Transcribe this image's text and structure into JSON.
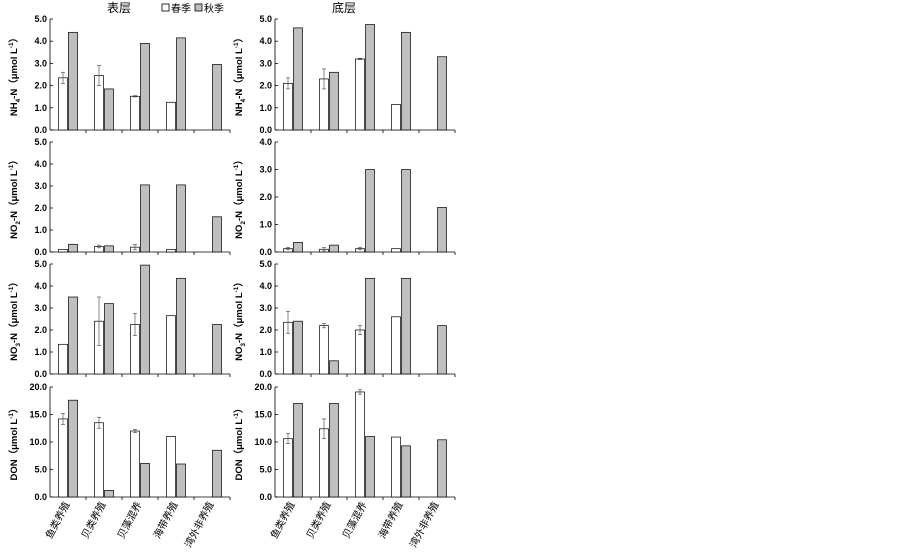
{
  "legend": {
    "spring_label": "春季",
    "autumn_label": "秋季",
    "spring_color": "#ffffff",
    "autumn_color": "#bfbfbf"
  },
  "columns": [
    {
      "title": "表层"
    },
    {
      "title": "底层"
    }
  ],
  "chart_data": [
    {
      "type": "bar",
      "layer": "表层",
      "ylabel": "NH4-N（μmol L-1）",
      "categories": [
        "鱼类养殖",
        "贝类养殖",
        "贝藻混养",
        "海带养殖",
        "湾外非养殖"
      ],
      "ylim": [
        0,
        5
      ],
      "yticks": [
        "0.0",
        "1.0",
        "2.0",
        "3.0",
        "4.0",
        "5.0"
      ],
      "series": [
        {
          "name": "春季",
          "values": [
            2.35,
            2.45,
            1.52,
            1.25,
            null
          ],
          "errors": [
            0.25,
            0.45,
            0.03,
            0,
            null
          ]
        },
        {
          "name": "秋季",
          "values": [
            4.4,
            1.85,
            3.9,
            4.15,
            2.95
          ]
        }
      ]
    },
    {
      "type": "bar",
      "layer": "底层",
      "ylabel": "NH4-N（μmol L-1）",
      "categories": [
        "鱼类养殖",
        "贝类养殖",
        "贝藻混养",
        "海带养殖",
        "湾外非养殖"
      ],
      "ylim": [
        0,
        5
      ],
      "yticks": [
        "0.0",
        "1.0",
        "2.0",
        "3.0",
        "4.0",
        "5.0"
      ],
      "series": [
        {
          "name": "春季",
          "values": [
            2.1,
            2.3,
            3.2,
            1.15,
            null
          ],
          "errors": [
            0.25,
            0.45,
            0.03,
            0,
            null
          ]
        },
        {
          "name": "秋季",
          "values": [
            4.6,
            2.6,
            4.75,
            4.4,
            3.3
          ]
        }
      ]
    },
    {
      "type": "bar",
      "layer": "表层",
      "ylabel": "NO2-N（μmol L-1）",
      "categories": [
        "鱼类养殖",
        "贝类养殖",
        "贝藻混养",
        "海带养殖",
        "湾外非养殖"
      ],
      "ylim": [
        0,
        5
      ],
      "yticks": [
        "0.0",
        "1.0",
        "2.0",
        "3.0",
        "4.0",
        "5.0"
      ],
      "series": [
        {
          "name": "春季",
          "values": [
            0.12,
            0.25,
            0.22,
            0.12,
            null
          ],
          "errors": [
            0,
            0.06,
            0.12,
            0,
            null
          ]
        },
        {
          "name": "秋季",
          "values": [
            0.35,
            0.28,
            3.05,
            3.05,
            1.6
          ]
        }
      ]
    },
    {
      "type": "bar",
      "layer": "底层",
      "ylabel": "NO2-N（μmol L-1）",
      "categories": [
        "鱼类养殖",
        "贝类养殖",
        "贝藻混养",
        "海带养殖",
        "湾外非养殖"
      ],
      "ylim": [
        0,
        4
      ],
      "yticks": [
        "0.0",
        "1.0",
        "2.0",
        "3.0",
        "4.0"
      ],
      "series": [
        {
          "name": "春季",
          "values": [
            0.12,
            0.1,
            0.12,
            0.12,
            null
          ],
          "errors": [
            0.04,
            0.06,
            0.04,
            0,
            null
          ]
        },
        {
          "name": "秋季",
          "values": [
            0.35,
            0.25,
            3.0,
            3.0,
            1.62
          ]
        }
      ]
    },
    {
      "type": "bar",
      "layer": "表层",
      "ylabel": "NO3-N（μmol L-1）",
      "categories": [
        "鱼类养殖",
        "贝类养殖",
        "贝藻混养",
        "海带养殖",
        "湾外非养殖"
      ],
      "ylim": [
        0,
        5
      ],
      "yticks": [
        "0.0",
        "1.0",
        "2.0",
        "3.0",
        "4.0",
        "5.0"
      ],
      "series": [
        {
          "name": "春季",
          "values": [
            1.35,
            2.4,
            2.25,
            2.65,
            null
          ],
          "errors": [
            0,
            1.1,
            0.5,
            0,
            null
          ]
        },
        {
          "name": "秋季",
          "values": [
            3.5,
            3.2,
            4.95,
            4.35,
            2.25
          ]
        }
      ]
    },
    {
      "type": "bar",
      "layer": "底层",
      "ylabel": "NO3-N（μmol L-1）",
      "categories": [
        "鱼类养殖",
        "贝类养殖",
        "贝藻混养",
        "海带养殖",
        "湾外非养殖"
      ],
      "ylim": [
        0,
        5
      ],
      "yticks": [
        "0.0",
        "1.0",
        "2.0",
        "3.0",
        "4.0",
        "5.0"
      ],
      "series": [
        {
          "name": "春季",
          "values": [
            2.35,
            2.2,
            2.0,
            2.6,
            null
          ],
          "errors": [
            0.5,
            0.1,
            0.2,
            0,
            null
          ]
        },
        {
          "name": "秋季",
          "values": [
            2.4,
            0.6,
            4.35,
            4.35,
            2.2
          ]
        }
      ]
    },
    {
      "type": "bar",
      "layer": "表层",
      "ylabel": "DON（μmol L-1）",
      "categories": [
        "鱼类养殖",
        "贝类养殖",
        "贝藻混养",
        "海带养殖",
        "湾外非养殖"
      ],
      "ylim": [
        0,
        20
      ],
      "yticks": [
        "0.0",
        "5.0",
        "10.0",
        "15.0",
        "20.0"
      ],
      "series": [
        {
          "name": "春季",
          "values": [
            14.2,
            13.5,
            12.0,
            11.0,
            null
          ],
          "errors": [
            1.0,
            1.0,
            0.3,
            0,
            null
          ]
        },
        {
          "name": "秋季",
          "values": [
            17.6,
            1.2,
            6.1,
            6.0,
            8.5
          ]
        }
      ]
    },
    {
      "type": "bar",
      "layer": "底层",
      "ylabel": "DON（μmol L-1）",
      "categories": [
        "鱼类养殖",
        "贝类养殖",
        "贝藻混养",
        "海带养殖",
        "湾外非养殖"
      ],
      "ylim": [
        0,
        20
      ],
      "yticks": [
        "0.0",
        "5.0",
        "10.0",
        "15.0",
        "20.0"
      ],
      "series": [
        {
          "name": "春季",
          "values": [
            10.6,
            12.4,
            19.1,
            10.9,
            null
          ],
          "errors": [
            0.9,
            1.8,
            0.4,
            0,
            null
          ]
        },
        {
          "name": "秋季",
          "values": [
            17.0,
            17.0,
            11.0,
            9.3,
            10.4
          ]
        }
      ]
    }
  ]
}
